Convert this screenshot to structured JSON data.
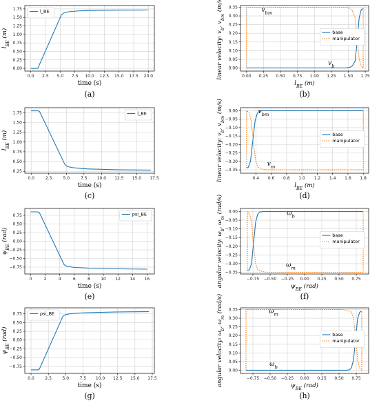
{
  "colors": {
    "base": "#1f77b4",
    "manipulator": "#ff7f0e",
    "grid": "#d0d0d0"
  },
  "chart_data": [
    {
      "id": "a",
      "type": "line",
      "caption": "(a)",
      "xlabel": "time (s)",
      "ylabel": "l_BE (m)",
      "xlim": [
        -1,
        21
      ],
      "ylim": [
        -0.08,
        1.85
      ],
      "xticks": [
        0,
        2.5,
        5,
        7.5,
        10,
        12.5,
        15,
        17.5,
        20
      ],
      "xtick_labels": [
        "0.0",
        "2.5",
        "5.0",
        "7.5",
        "10.0",
        "12.5",
        "15.0",
        "17.5",
        "20.0"
      ],
      "yticks": [
        0,
        0.25,
        0.5,
        0.75,
        1.0,
        1.25,
        1.5,
        1.75
      ],
      "ytick_labels": [
        "0.00",
        "0.25",
        "0.50",
        "0.75",
        "1.00",
        "1.25",
        "1.50",
        "1.75"
      ],
      "legend": {
        "position": "top-left"
      },
      "series": [
        {
          "name": "l_BE",
          "color": "base",
          "x": [
            0,
            1.0,
            1.2,
            5.2,
            5.6,
            6.5,
            8,
            10,
            12,
            15,
            18,
            20
          ],
          "y": [
            0,
            0,
            0,
            1.57,
            1.63,
            1.67,
            1.69,
            1.705,
            1.71,
            1.715,
            1.717,
            1.718
          ]
        }
      ]
    },
    {
      "id": "b",
      "type": "line",
      "caption": "(b)",
      "xlabel": "l_BE (m)",
      "ylabel": "linear velocity: v_b, v_bm (m/s)",
      "xlim": [
        -0.09,
        1.8
      ],
      "ylim": [
        -0.018,
        0.36
      ],
      "xticks": [
        0,
        0.25,
        0.5,
        0.75,
        1.0,
        1.25,
        1.5,
        1.75
      ],
      "xtick_labels": [
        "0.00",
        "0.25",
        "0.50",
        "0.75",
        "1.00",
        "1.25",
        "1.50",
        "1.75"
      ],
      "yticks": [
        0,
        0.05,
        0.1,
        0.15,
        0.2,
        0.25,
        0.3,
        0.35
      ],
      "ytick_labels": [
        "0.00",
        "0.05",
        "0.10",
        "0.15",
        "0.20",
        "0.25",
        "0.30",
        "0.35"
      ],
      "legend": {
        "position": "center-right"
      },
      "annotations": [
        {
          "text": "v_bm",
          "x": 0.3,
          "y": 0.325
        },
        {
          "text": "v_b",
          "x": 1.25,
          "y": 0.018
        }
      ],
      "series": [
        {
          "name": "base",
          "color": "base",
          "dashed": false,
          "x": [
            0,
            1.45,
            1.52,
            1.56,
            1.6,
            1.63,
            1.66,
            1.69,
            1.7,
            1.72
          ],
          "y": [
            0,
            0,
            0.003,
            0.012,
            0.04,
            0.15,
            0.29,
            0.335,
            0.34,
            0.34
          ]
        },
        {
          "name": "manipulator",
          "color": "manipulator",
          "dashed": true,
          "x": [
            0,
            0,
            1.45,
            1.52,
            1.56,
            1.6,
            1.63,
            1.66,
            1.69,
            1.72,
            1.72
          ],
          "y": [
            0,
            0.35,
            0.35,
            0.345,
            0.33,
            0.29,
            0.18,
            0.05,
            0.01,
            0.0,
            0.35
          ]
        }
      ]
    },
    {
      "id": "c",
      "type": "line",
      "caption": "(c)",
      "xlabel": "time (s)",
      "ylabel": "l_BE (m)",
      "xlim": [
        -0.9,
        17.5
      ],
      "ylim": [
        0.2,
        1.88
      ],
      "xticks": [
        0,
        2.5,
        5,
        7.5,
        10,
        12.5,
        15,
        17.5
      ],
      "xtick_labels": [
        "0.0",
        "2.5",
        "5.0",
        "7.5",
        "10.0",
        "12.5",
        "15.0",
        "17.5"
      ],
      "yticks": [
        0.25,
        0.5,
        0.75,
        1.0,
        1.25,
        1.5,
        1.75
      ],
      "ytick_labels": [
        "0.25",
        "0.50",
        "0.75",
        "1.00",
        "1.25",
        "1.50",
        "1.75"
      ],
      "legend": {
        "position": "top-right"
      },
      "series": [
        {
          "name": "l_BE",
          "color": "base",
          "x": [
            0,
            1.0,
            1.2,
            4.8,
            5.2,
            6,
            8,
            10,
            12,
            14,
            17
          ],
          "y": [
            1.8,
            1.8,
            1.78,
            0.42,
            0.37,
            0.34,
            0.31,
            0.3,
            0.29,
            0.285,
            0.28
          ]
        }
      ]
    },
    {
      "id": "d",
      "type": "line",
      "caption": "(d)",
      "xlabel": "l_BE (m)",
      "ylabel": "linear velocity: v_b, v_bm (m/s)",
      "xlim": [
        0.2,
        1.87
      ],
      "ylim": [
        -0.37,
        0.018
      ],
      "xticks": [
        0.4,
        0.6,
        0.8,
        1.0,
        1.2,
        1.4,
        1.6,
        1.8
      ],
      "xtick_labels": [
        "0.4",
        "0.6",
        "0.8",
        "1.0",
        "1.2",
        "1.4",
        "1.6",
        "1.8"
      ],
      "yticks": [
        0,
        -0.05,
        -0.1,
        -0.15,
        -0.2,
        -0.25,
        -0.3,
        -0.35
      ],
      "ytick_labels": [
        "0.00",
        "−0.05",
        "−0.10",
        "−0.15",
        "−0.20",
        "−0.25",
        "−0.30",
        "−0.35"
      ],
      "legend": {
        "position": "center-right"
      },
      "annotations": [
        {
          "text": "v_bm",
          "x": 0.5,
          "y": -0.015
        },
        {
          "text": "v_m",
          "x": 0.6,
          "y": -0.325
        }
      ],
      "series": [
        {
          "name": "base",
          "color": "base",
          "dashed": false,
          "x": [
            0.28,
            0.3,
            0.33,
            0.36,
            0.39,
            0.42,
            0.45,
            0.5,
            1.8
          ],
          "y": [
            -0.34,
            -0.335,
            -0.3,
            -0.18,
            -0.06,
            -0.015,
            -0.002,
            0,
            0
          ]
        },
        {
          "name": "manipulator",
          "color": "manipulator",
          "dashed": true,
          "x": [
            0.28,
            0.28,
            0.31,
            0.34,
            0.37,
            0.4,
            0.43,
            0.48,
            0.55,
            1.8,
            1.8
          ],
          "y": [
            -0.34,
            0,
            -0.01,
            -0.06,
            -0.2,
            -0.3,
            -0.335,
            -0.345,
            -0.35,
            -0.35,
            0
          ]
        }
      ]
    },
    {
      "id": "e",
      "type": "line",
      "caption": "(e)",
      "xlabel": "time (s)",
      "ylabel": "ψ_BE (rad)",
      "xlim": [
        -0.8,
        17
      ],
      "ylim": [
        -0.95,
        0.95
      ],
      "xticks": [
        0,
        2,
        4,
        6,
        8,
        10,
        12,
        14,
        16
      ],
      "xtick_labels": [
        "0",
        "2",
        "4",
        "6",
        "8",
        "10",
        "12",
        "14",
        "16"
      ],
      "yticks": [
        0.75,
        0.5,
        0.25,
        0,
        -0.25,
        -0.5,
        -0.75
      ],
      "ytick_labels": [
        "0.75",
        "0.50",
        "0.25",
        "0.00",
        "−0.25",
        "−0.50",
        "−0.75"
      ],
      "legend": {
        "position": "top-right"
      },
      "series": [
        {
          "name": "psi_BE",
          "color": "base",
          "x": [
            0,
            1.0,
            1.2,
            4.6,
            5.0,
            6,
            8,
            10,
            12,
            14,
            16
          ],
          "y": [
            0.85,
            0.85,
            0.83,
            -0.68,
            -0.73,
            -0.76,
            -0.78,
            -0.79,
            -0.8,
            -0.805,
            -0.81
          ]
        }
      ]
    },
    {
      "id": "f",
      "type": "line",
      "caption": "(f)",
      "xlabel": "ψ_BE (rad)",
      "ylabel": "angular velocity: ω_b, ω_m (rad/s)",
      "xlim": [
        -0.93,
        0.93
      ],
      "ylim": [
        -0.36,
        0.018
      ],
      "xticks": [
        -0.75,
        -0.5,
        -0.25,
        0,
        0.25,
        0.5,
        0.75
      ],
      "xtick_labels": [
        "−0.75",
        "−0.50",
        "−0.25",
        "0.00",
        "0.25",
        "0.50",
        "0.75"
      ],
      "yticks": [
        0,
        -0.05,
        -0.1,
        -0.15,
        -0.2,
        -0.25,
        -0.3,
        -0.35
      ],
      "ytick_labels": [
        "0.00",
        "−0.05",
        "−0.10",
        "−0.15",
        "−0.20",
        "−0.25",
        "−0.30",
        "−0.35"
      ],
      "legend": {
        "position": "center-right"
      },
      "annotations": [
        {
          "text": "ω_b",
          "x": -0.2,
          "y": -0.02
        },
        {
          "text": "ω_m",
          "x": -0.2,
          "y": -0.318
        }
      ],
      "series": [
        {
          "name": "base",
          "color": "base",
          "dashed": false,
          "x": [
            -0.83,
            -0.8,
            -0.77,
            -0.74,
            -0.71,
            -0.68,
            -0.65,
            -0.6,
            0.85
          ],
          "y": [
            -0.34,
            -0.335,
            -0.3,
            -0.18,
            -0.06,
            -0.015,
            -0.002,
            0,
            0
          ]
        },
        {
          "name": "manipulator",
          "color": "manipulator",
          "dashed": true,
          "x": [
            -0.83,
            -0.83,
            -0.8,
            -0.77,
            -0.74,
            -0.71,
            -0.68,
            -0.62,
            -0.55,
            0.85,
            0.85
          ],
          "y": [
            -0.34,
            0,
            -0.01,
            -0.06,
            -0.2,
            -0.3,
            -0.335,
            -0.345,
            -0.35,
            -0.35,
            0
          ]
        }
      ]
    },
    {
      "id": "g",
      "type": "line",
      "caption": "(g)",
      "xlabel": "time (s)",
      "ylabel": "ψ_BE (rad)",
      "xlim": [
        -0.9,
        17.8
      ],
      "ylim": [
        -0.95,
        0.92
      ],
      "xticks": [
        0,
        2.5,
        5,
        7.5,
        10,
        12.5,
        15,
        17.5
      ],
      "xtick_labels": [
        "0.0",
        "2.5",
        "5.0",
        "7.5",
        "10.0",
        "12.5",
        "15.0",
        "17.5"
      ],
      "yticks": [
        0.75,
        0.5,
        0.25,
        0,
        -0.25,
        -0.5,
        -0.75
      ],
      "ytick_labels": [
        "0.75",
        "0.50",
        "0.25",
        "0.00",
        "−0.25",
        "−0.50",
        "−0.75"
      ],
      "legend": {
        "position": "top-left"
      },
      "series": [
        {
          "name": "psi_BE",
          "color": "base",
          "x": [
            0,
            1.0,
            1.2,
            4.6,
            5.0,
            6,
            8,
            10,
            12,
            14,
            17
          ],
          "y": [
            -0.85,
            -0.85,
            -0.83,
            0.68,
            0.73,
            0.76,
            0.78,
            0.79,
            0.8,
            0.805,
            0.81
          ]
        }
      ]
    },
    {
      "id": "h",
      "type": "line",
      "caption": "(h)",
      "xlabel": "ψ_BE (rad)",
      "ylabel": "angular velocity: ω_b, ω_m (rad/s)",
      "xlim": [
        -0.93,
        0.93
      ],
      "ylim": [
        -0.018,
        0.36
      ],
      "xticks": [
        -0.75,
        -0.5,
        -0.25,
        0,
        0.25,
        0.5,
        0.75
      ],
      "xtick_labels": [
        "−0.75",
        "−0.50",
        "−0.25",
        "0.00",
        "0.25",
        "0.50",
        "0.75"
      ],
      "yticks": [
        0,
        0.05,
        0.1,
        0.15,
        0.2,
        0.25,
        0.3,
        0.35
      ],
      "ytick_labels": [
        "0.00",
        "0.05",
        "0.10",
        "0.15",
        "0.20",
        "0.25",
        "0.30",
        "0.35"
      ],
      "legend": {
        "position": "center-right"
      },
      "annotations": [
        {
          "text": "ω_m",
          "x": -0.45,
          "y": 0.33
        },
        {
          "text": "ω_b",
          "x": -0.45,
          "y": 0.025
        }
      ],
      "series": [
        {
          "name": "base",
          "color": "base",
          "dashed": false,
          "x": [
            -0.85,
            0.6,
            0.65,
            0.68,
            0.71,
            0.74,
            0.77,
            0.8,
            0.83
          ],
          "y": [
            0,
            0,
            0.002,
            0.015,
            0.06,
            0.18,
            0.3,
            0.335,
            0.34
          ]
        },
        {
          "name": "manipulator",
          "color": "manipulator",
          "dashed": true,
          "x": [
            -0.85,
            -0.85,
            0.55,
            0.62,
            0.68,
            0.71,
            0.74,
            0.77,
            0.8,
            0.83,
            0.83
          ],
          "y": [
            0,
            0.35,
            0.35,
            0.345,
            0.335,
            0.3,
            0.2,
            0.06,
            0.01,
            0,
            0.34
          ]
        }
      ]
    }
  ]
}
